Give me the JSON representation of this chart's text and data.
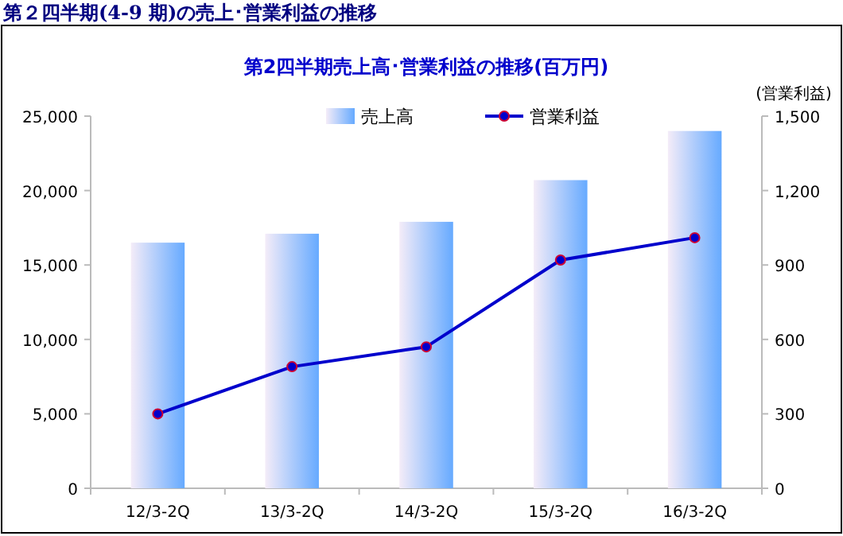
{
  "chart_data": {
    "type": "bar",
    "title": "第２四半期(4-9 期)の売上･営業利益の推移",
    "subtitle": "第2四半期売上高･営業利益の推移(百万円)",
    "y2label": "(営業利益)",
    "categories": [
      "12/3-2Q",
      "13/3-2Q",
      "14/3-2Q",
      "15/3-2Q",
      "16/3-2Q"
    ],
    "series": [
      {
        "name": "売上高",
        "color": "#66aaff",
        "values": [
          16500,
          17100,
          17900,
          20700,
          24000
        ]
      },
      {
        "name": "営業利益",
        "type": "line",
        "axis": "y2",
        "color": "#0000cc",
        "marker": "circle",
        "values": [
          300,
          490,
          570,
          920,
          1010
        ]
      }
    ],
    "ylim": [
      0,
      25000
    ],
    "yticks": [
      {
        "value": 0,
        "label": "0"
      },
      {
        "value": 5000,
        "label": "5,000"
      },
      {
        "value": 10000,
        "label": "10,000"
      },
      {
        "value": 15000,
        "label": "15,000"
      },
      {
        "value": 20000,
        "label": "20,000"
      },
      {
        "value": 25000,
        "label": "25,000"
      }
    ],
    "y2lim": [
      0,
      1500
    ],
    "y2ticks": [
      {
        "value": 0,
        "label": "0"
      },
      {
        "value": 300,
        "label": "300"
      },
      {
        "value": 600,
        "label": "600"
      },
      {
        "value": 900,
        "label": "900"
      },
      {
        "value": 1200,
        "label": "1,200"
      },
      {
        "value": 1500,
        "label": "1,500"
      }
    ],
    "grid": false,
    "legend": "top"
  }
}
